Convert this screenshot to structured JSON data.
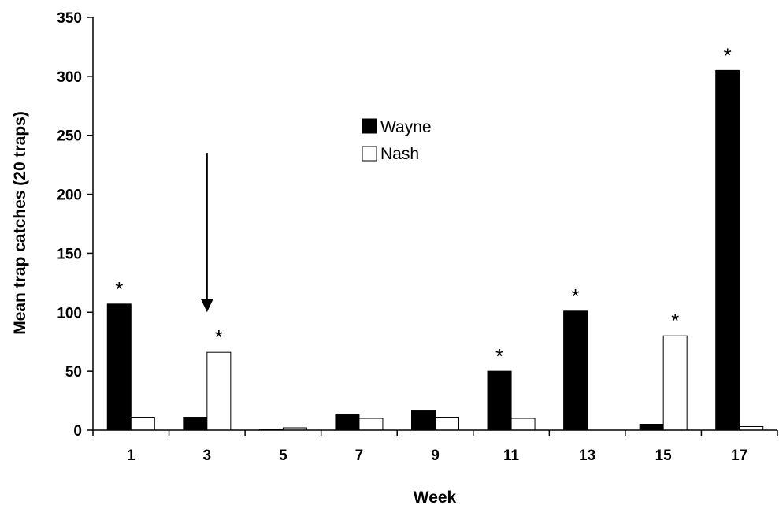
{
  "chart_data": {
    "type": "bar",
    "title": "",
    "xlabel": "Week",
    "ylabel": "Mean trap catches (20 traps)",
    "ylim": [
      0,
      350
    ],
    "yticks": [
      "0",
      "50",
      "100",
      "150",
      "200",
      "250",
      "300",
      "350"
    ],
    "categories": [
      "1",
      "3",
      "5",
      "7",
      "9",
      "11",
      "13",
      "15",
      "17"
    ],
    "series": [
      {
        "name": "Wayne",
        "color": "#000000",
        "values": [
          107,
          11,
          1,
          13,
          17,
          50,
          101,
          5,
          305
        ]
      },
      {
        "name": "Nash",
        "color": "#ffffff",
        "values": [
          11,
          66,
          2,
          10,
          11,
          10,
          0,
          80,
          3
        ]
      }
    ],
    "significance_marker": "*",
    "significance": [
      {
        "category": "1",
        "series": "Wayne"
      },
      {
        "category": "3",
        "series": "Nash"
      },
      {
        "category": "11",
        "series": "Wayne"
      },
      {
        "category": "13",
        "series": "Wayne"
      },
      {
        "category": "15",
        "series": "Nash"
      },
      {
        "category": "17",
        "series": "Wayne"
      }
    ],
    "arrow": {
      "category": "3",
      "from_value": 235,
      "to_value": 100
    },
    "legend_placement": "top-center",
    "grid": false
  }
}
